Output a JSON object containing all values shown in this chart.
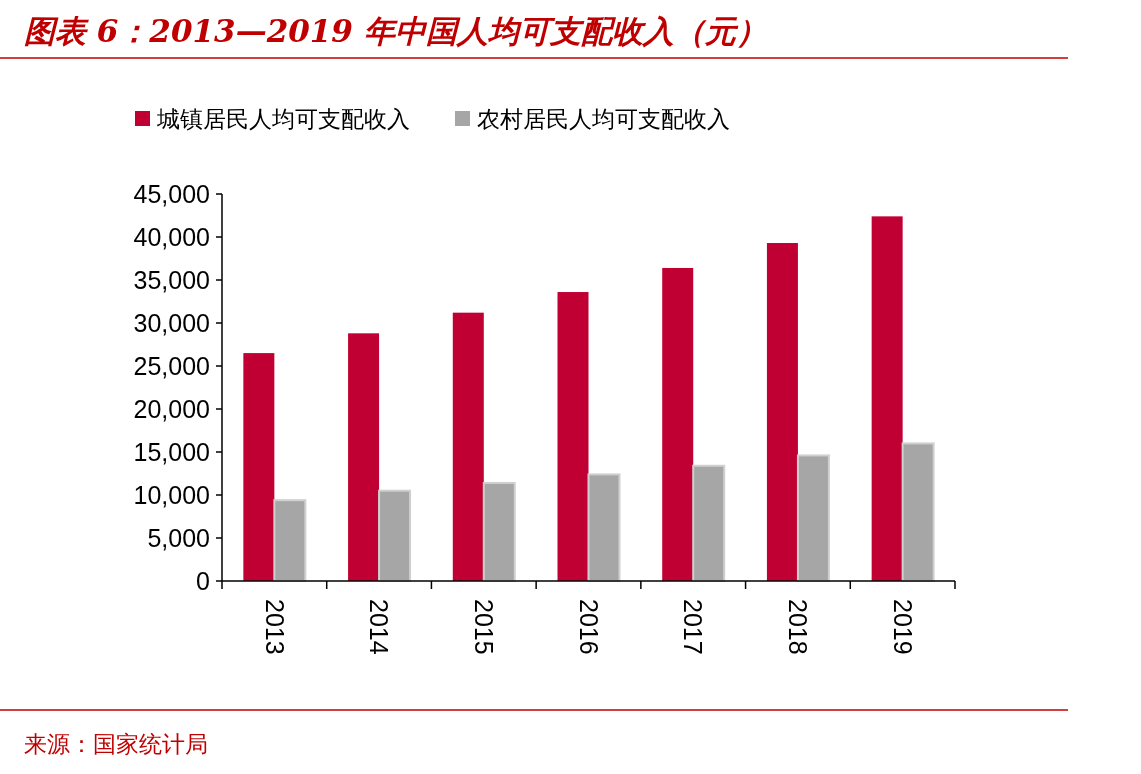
{
  "chart_data": {
    "type": "bar",
    "title": "图表 6：2013—2019 年中国人均可支配收入（元）",
    "categories": [
      "2013",
      "2014",
      "2015",
      "2016",
      "2017",
      "2018",
      "2019"
    ],
    "series": [
      {
        "name": "城镇居民人均可支配收入",
        "color": "#c00032",
        "values": [
          26500,
          28800,
          31200,
          33600,
          36400,
          39300,
          42400
        ]
      },
      {
        "name": "农村居民人均可支配收入",
        "color": "#a6a6a6",
        "values": [
          9400,
          10500,
          11400,
          12400,
          13400,
          14600,
          16000
        ]
      }
    ],
    "ylim": [
      0,
      45000
    ],
    "yticks": [
      {
        "value": 0,
        "label": "0"
      },
      {
        "value": 5000,
        "label": "5,000"
      },
      {
        "value": 10000,
        "label": "10,000"
      },
      {
        "value": 15000,
        "label": "15,000"
      },
      {
        "value": 20000,
        "label": "20,000"
      },
      {
        "value": 25000,
        "label": "25,000"
      },
      {
        "value": 30000,
        "label": "30,000"
      },
      {
        "value": 35000,
        "label": "35,000"
      },
      {
        "value": 40000,
        "label": "40,000"
      },
      {
        "value": 45000,
        "label": "45,000"
      }
    ],
    "legend": "top",
    "grid": false,
    "annotations": [
      "来源：国家统计局"
    ]
  }
}
